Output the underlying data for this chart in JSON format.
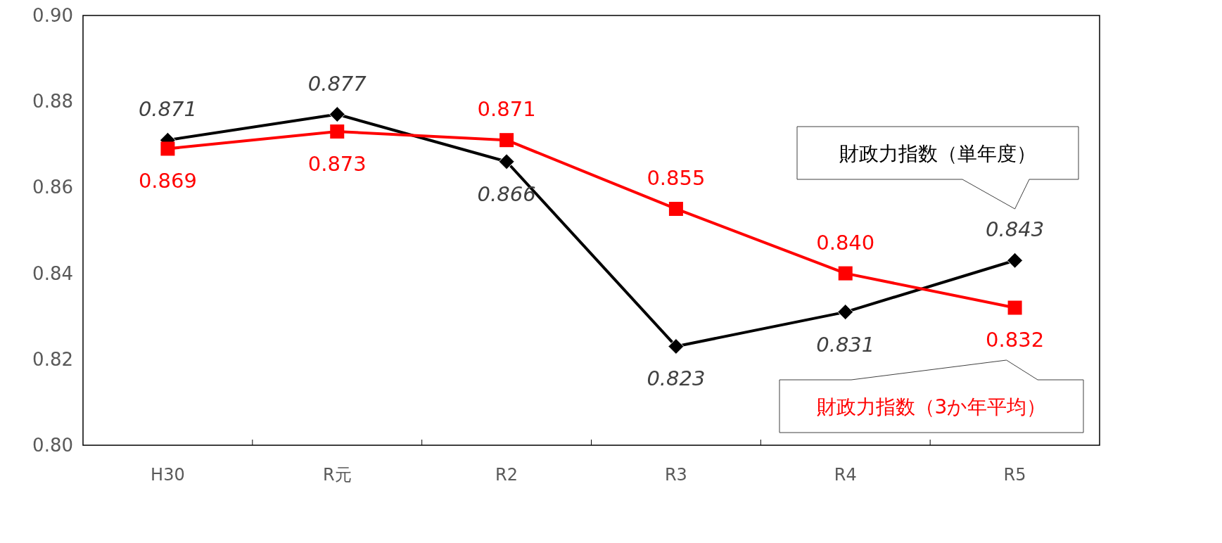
{
  "chart_data": {
    "type": "line",
    "categories": [
      "H30",
      "R元",
      "R2",
      "R3",
      "R4",
      "R5"
    ],
    "ylim": [
      0.8,
      0.9
    ],
    "yticks": [
      {
        "value": 0.8,
        "label": "0.80"
      },
      {
        "value": 0.82,
        "label": "0.82"
      },
      {
        "value": 0.84,
        "label": "0.84"
      },
      {
        "value": 0.86,
        "label": "0.86"
      },
      {
        "value": 0.88,
        "label": "0.88"
      },
      {
        "value": 0.9,
        "label": "0.90"
      }
    ],
    "series": [
      {
        "name": "財政力指数（単年度）",
        "color": "#000000",
        "marker": "diamond",
        "values": [
          0.871,
          0.877,
          0.866,
          0.823,
          0.831,
          0.843
        ],
        "value_labels": [
          "0.871",
          "0.877",
          "0.866",
          "0.823",
          "0.831",
          "0.843"
        ]
      },
      {
        "name": "財政力指数（3か年平均）",
        "color": "#ff0000",
        "marker": "square",
        "values": [
          0.869,
          0.873,
          0.871,
          0.855,
          0.84,
          0.832
        ],
        "value_labels": [
          "0.869",
          "0.873",
          "0.871",
          "0.855",
          "0.840",
          "0.832"
        ]
      }
    ]
  }
}
